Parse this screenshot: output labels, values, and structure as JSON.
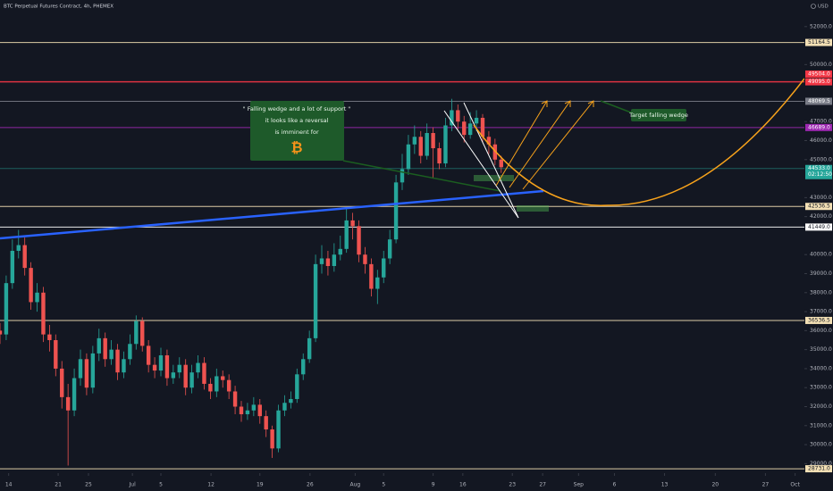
{
  "title": "BTC Perpetual Futures Contract, 4h, PHEMEX",
  "currency": "USD",
  "annotation_box": {
    "lines": [
      "\" Falling wedge and a lot of support \"",
      "it looks like a reversal",
      "is imminent for"
    ],
    "symbol": "₿"
  },
  "target_label": "Target falling wedge",
  "chart_data": {
    "type": "candlestick",
    "up_color": "#26a69a",
    "down_color": "#ef5350",
    "xlim": [
      0,
      130
    ],
    "ylim": [
      28500,
      53400
    ],
    "xticks": [
      {
        "value": 1.4,
        "label": "14"
      },
      {
        "value": 9.4,
        "label": "21"
      },
      {
        "value": 14.3,
        "label": "25"
      },
      {
        "value": 21.4,
        "label": "Jul"
      },
      {
        "value": 26,
        "label": "5"
      },
      {
        "value": 34.1,
        "label": "12"
      },
      {
        "value": 42,
        "label": "19"
      },
      {
        "value": 50.1,
        "label": "26"
      },
      {
        "value": 57.4,
        "label": "Aug"
      },
      {
        "value": 62,
        "label": "5"
      },
      {
        "value": 70,
        "label": "9"
      },
      {
        "value": 74.8,
        "label": "16"
      },
      {
        "value": 82.8,
        "label": "23"
      },
      {
        "value": 87.7,
        "label": "27"
      },
      {
        "value": 93.5,
        "label": "Sep"
      },
      {
        "value": 99.3,
        "label": "6"
      },
      {
        "value": 107.4,
        "label": "13"
      },
      {
        "value": 115.6,
        "label": "20"
      },
      {
        "value": 123.7,
        "label": "27"
      },
      {
        "value": 128.5,
        "label": "Oct"
      }
    ],
    "yticks": [
      {
        "value": 52000,
        "label": "52000.0"
      },
      {
        "value": 50000,
        "label": "50000.0"
      },
      {
        "value": 47000,
        "label": "47000.0"
      },
      {
        "value": 46000,
        "label": "46000.0"
      },
      {
        "value": 45000,
        "label": "45000.0"
      },
      {
        "value": 43000,
        "label": "43000.0"
      },
      {
        "value": 42000,
        "label": "42000.0"
      },
      {
        "value": 40000,
        "label": "40000.0"
      },
      {
        "value": 39000,
        "label": "39000.0"
      },
      {
        "value": 38000,
        "label": "38000.0"
      },
      {
        "value": 37000,
        "label": "37000.0"
      },
      {
        "value": 36000,
        "label": "36000.0"
      },
      {
        "value": 35000,
        "label": "35000.0"
      },
      {
        "value": 34000,
        "label": "34000.0"
      },
      {
        "value": 33000,
        "label": "33000.0"
      },
      {
        "value": 32000,
        "label": "32000.0"
      },
      {
        "value": 31000,
        "label": "31000.0"
      },
      {
        "value": 30000,
        "label": "30000.0"
      },
      {
        "value": 29000,
        "label": "29000.0"
      }
    ],
    "levels": [
      {
        "value": 51164.5,
        "color": "#f3e0b5",
        "text_color": "#131722",
        "line": true
      },
      {
        "value": 49504,
        "label": "49504.0",
        "color": "#f23645",
        "text_color": "#ffffff",
        "line": false
      },
      {
        "value": 49095,
        "label": "49095.0",
        "color": "#f23645",
        "text_color": "#ffffff",
        "line": true
      },
      {
        "value": 48069.5,
        "color": "#787b86",
        "text_color": "#ffffff",
        "line": true
      },
      {
        "value": 46689,
        "label": "46689.0",
        "color": "#9c27b0",
        "text_color": "#ffffff",
        "line": true
      },
      {
        "value": 44533,
        "label": "44533.0",
        "color": "#26a69a",
        "text_color": "#ffffff",
        "line": true,
        "countdown": "02:12:50"
      },
      {
        "value": 42536.5,
        "color": "#f3e0b5",
        "text_color": "#131722",
        "line": true
      },
      {
        "value": 41449,
        "label": "41449.0",
        "color": "#ffffff",
        "text_color": "#131722",
        "line": true
      },
      {
        "value": 36536.5,
        "color": "#f3e0b5",
        "text_color": "#131722",
        "line": true
      },
      {
        "value": 28731,
        "label": "28731.0",
        "color": "#f3e0b5",
        "text_color": "#131722",
        "line": true
      }
    ],
    "candles": [
      [
        36000,
        36400,
        35300,
        35800
      ],
      [
        35800,
        38900,
        35500,
        38500
      ],
      [
        38500,
        40800,
        38200,
        40200
      ],
      [
        40200,
        41300,
        39800,
        40500
      ],
      [
        40500,
        40900,
        38900,
        39300
      ],
      [
        39300,
        39600,
        37100,
        37500
      ],
      [
        37500,
        38500,
        37000,
        38000
      ],
      [
        38000,
        38300,
        35400,
        35800
      ],
      [
        35800,
        36300,
        34900,
        35500
      ],
      [
        35500,
        35800,
        33600,
        34000
      ],
      [
        34000,
        34400,
        31900,
        32500
      ],
      [
        32500,
        33200,
        28900,
        31800
      ],
      [
        31800,
        34000,
        31500,
        33500
      ],
      [
        33500,
        35000,
        33100,
        34500
      ],
      [
        34500,
        34800,
        32600,
        33000
      ],
      [
        33000,
        35200,
        32700,
        34800
      ],
      [
        34800,
        36100,
        34400,
        35600
      ],
      [
        35600,
        35900,
        34100,
        34500
      ],
      [
        34500,
        35500,
        34200,
        35000
      ],
      [
        35000,
        35300,
        33400,
        33800
      ],
      [
        33800,
        34900,
        33500,
        34500
      ],
      [
        34500,
        35800,
        34200,
        35300
      ],
      [
        35300,
        36800,
        35000,
        36500
      ],
      [
        36500,
        36700,
        34900,
        35200
      ],
      [
        35200,
        35500,
        33800,
        34200
      ],
      [
        34200,
        34600,
        33500,
        33900
      ],
      [
        33900,
        35100,
        33600,
        34700
      ],
      [
        34700,
        35000,
        33100,
        33500
      ],
      [
        33500,
        34200,
        33200,
        33800
      ],
      [
        33800,
        34600,
        33500,
        34200
      ],
      [
        34200,
        34500,
        32600,
        33000
      ],
      [
        33000,
        34200,
        32700,
        33800
      ],
      [
        33800,
        34700,
        33500,
        34300
      ],
      [
        34300,
        34600,
        32900,
        33200
      ],
      [
        33200,
        33500,
        32400,
        32800
      ],
      [
        32800,
        34000,
        32500,
        33600
      ],
      [
        33600,
        33900,
        33000,
        33400
      ],
      [
        33400,
        33700,
        32400,
        32800
      ],
      [
        32800,
        33100,
        31600,
        32000
      ],
      [
        32000,
        32300,
        31200,
        31600
      ],
      [
        31600,
        32200,
        31300,
        31800
      ],
      [
        31800,
        32500,
        31500,
        32100
      ],
      [
        32100,
        32400,
        31100,
        31500
      ],
      [
        31500,
        31800,
        30400,
        30800
      ],
      [
        30800,
        31000,
        29300,
        29800
      ],
      [
        29800,
        32100,
        29600,
        31800
      ],
      [
        31800,
        32600,
        31500,
        32200
      ],
      [
        32200,
        32800,
        31900,
        32400
      ],
      [
        32400,
        34000,
        32200,
        33700
      ],
      [
        33700,
        34800,
        33400,
        34500
      ],
      [
        34500,
        36000,
        34300,
        35600
      ],
      [
        35600,
        40000,
        35400,
        39500
      ],
      [
        39500,
        40500,
        39000,
        39800
      ],
      [
        39800,
        40200,
        38900,
        39400
      ],
      [
        39400,
        40600,
        39100,
        40000
      ],
      [
        40000,
        41000,
        39700,
        40300
      ],
      [
        40300,
        42500,
        40100,
        41800
      ],
      [
        41800,
        42200,
        40800,
        41500
      ],
      [
        41500,
        41800,
        39600,
        40000
      ],
      [
        40000,
        40400,
        39000,
        39500
      ],
      [
        39500,
        39800,
        37800,
        38200
      ],
      [
        38200,
        39200,
        37400,
        38800
      ],
      [
        38800,
        40200,
        38500,
        39800
      ],
      [
        39800,
        41300,
        39500,
        40800
      ],
      [
        40800,
        44200,
        40600,
        43800
      ],
      [
        43800,
        45300,
        43400,
        44500
      ],
      [
        44500,
        46300,
        44200,
        45800
      ],
      [
        45800,
        46800,
        45300,
        46200
      ],
      [
        46200,
        46500,
        44800,
        45200
      ],
      [
        45200,
        46900,
        45000,
        46400
      ],
      [
        46400,
        46700,
        44000,
        45600
      ],
      [
        45600,
        45900,
        44500,
        44800
      ],
      [
        44800,
        47200,
        44600,
        46800
      ],
      [
        46800,
        48200,
        46500,
        47600
      ],
      [
        47600,
        47900,
        46600,
        47000
      ],
      [
        47000,
        47300,
        45900,
        46300
      ],
      [
        46300,
        47500,
        46100,
        46900
      ],
      [
        46900,
        47600,
        46500,
        47200
      ],
      [
        47200,
        47400,
        45900,
        46200
      ],
      [
        46200,
        46500,
        45300,
        45800
      ],
      [
        45800,
        46100,
        44700,
        45000
      ],
      [
        45000,
        45200,
        44300,
        44600
      ]
    ]
  }
}
